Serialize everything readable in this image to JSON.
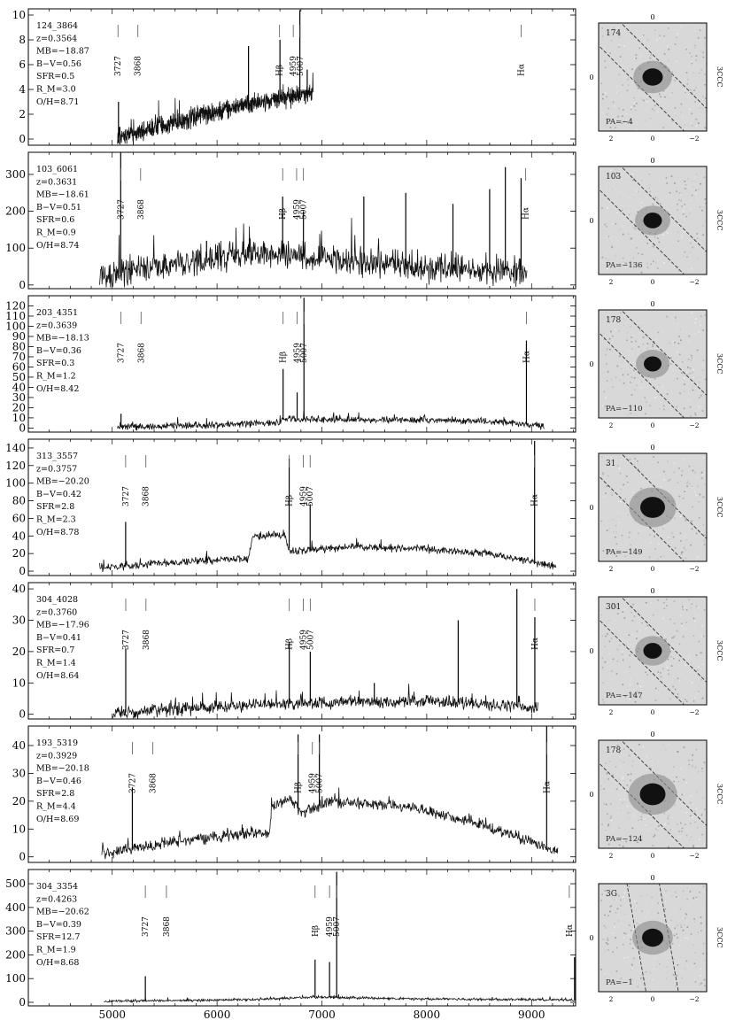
{
  "chart_data": {
    "type": "line",
    "x_axis": {
      "range": [
        4200,
        9420
      ],
      "ticks": [
        5000,
        6000,
        7000,
        8000,
        9000
      ],
      "tick_labels": [
        "5000",
        "6000",
        "7000",
        "8000",
        "9000"
      ]
    },
    "panels": [
      {
        "id": "124_3864",
        "info": [
          "124_3864",
          "z=0.3564",
          "MB=−18.87",
          "B−V=0.56",
          "SFR=0.5",
          "R_M=3.0",
          "O/H=8.71"
        ],
        "ylim": [
          -0.5,
          10.5
        ],
        "yticks": [
          0,
          2,
          4,
          6,
          8,
          10
        ],
        "lines": [
          {
            "label": "3727",
            "x": 5055
          },
          {
            "label": "3868",
            "x": 5245
          },
          {
            "label": "Hβ",
            "x": 6596
          },
          {
            "label": "4959",
            "x": 6727
          },
          {
            "label": "5007",
            "x": 6792
          },
          {
            "label": "Hα",
            "x": 8900
          }
        ],
        "spectrum": {
          "x_range": [
            5050,
            6920
          ],
          "continuum": [
            [
              5050,
              0.1
            ],
            [
              5400,
              0.9
            ],
            [
              5800,
              1.8
            ],
            [
              6200,
              2.6
            ],
            [
              6600,
              3.2
            ],
            [
              6920,
              3.8
            ]
          ],
          "noise": 0.7,
          "spikes": [
            [
              5060,
              3.0
            ],
            [
              6300,
              7.5
            ],
            [
              6600,
              8.0
            ],
            [
              6790,
              10.4
            ],
            [
              6860,
              5.6
            ]
          ]
        },
        "thumb": {
          "id_label": "174",
          "pa_label": "PA=−4",
          "side_label": "3CCC",
          "scale_ticks": [
            "2",
            "0",
            "−2"
          ],
          "line_angle": 45,
          "blob_size": 0.55
        }
      },
      {
        "id": "103_6061",
        "info": [
          "103_6061",
          "z=0.3631",
          "MB=−18.61",
          "B−V=0.51",
          "SFR=0.6",
          "R_M=0.9",
          "O/H=8.74"
        ],
        "ylim": [
          -10,
          360
        ],
        "yticks": [
          0,
          100,
          200,
          300
        ],
        "lines": [
          {
            "label": "3727",
            "x": 5081
          },
          {
            "label": "3868",
            "x": 5271
          },
          {
            "label": "Hβ",
            "x": 6626
          },
          {
            "label": "4959",
            "x": 6759
          },
          {
            "label": "5007",
            "x": 6824
          },
          {
            "label": "Hα",
            "x": 8944
          }
        ],
        "spectrum": {
          "x_range": [
            4880,
            8960
          ],
          "continuum": [
            [
              4880,
              15
            ],
            [
              5300,
              45
            ],
            [
              5900,
              75
            ],
            [
              6500,
              90
            ],
            [
              7000,
              70
            ],
            [
              7600,
              55
            ],
            [
              8300,
              45
            ],
            [
              8960,
              40
            ]
          ],
          "noise": 35,
          "spikes": [
            [
              5081,
              360
            ],
            [
              5900,
              120
            ],
            [
              6626,
              240
            ],
            [
              6824,
              200
            ],
            [
              7400,
              240
            ],
            [
              7800,
              250
            ],
            [
              8250,
              220
            ],
            [
              8600,
              260
            ],
            [
              8750,
              320
            ],
            [
              8900,
              290
            ]
          ]
        },
        "thumb": {
          "id_label": "103",
          "pa_label": "PA=−136",
          "side_label": "3CCC",
          "scale_ticks": [
            "2",
            "0",
            "−2"
          ],
          "line_angle": 45,
          "blob_size": 0.45
        }
      },
      {
        "id": "203_4351",
        "info": [
          "203_4351",
          "z=0.3639",
          "MB=−18.13",
          "B−V=0.36",
          "SFR=0.3",
          "R_M=1.2",
          "O/H=8.42"
        ],
        "ylim": [
          -4,
          130
        ],
        "yticks": [
          0,
          10,
          20,
          30,
          40,
          50,
          60,
          70,
          80,
          90,
          100,
          110,
          120
        ],
        "lines": [
          {
            "label": "3727",
            "x": 5084
          },
          {
            "label": "3868",
            "x": 5275
          },
          {
            "label": "Hβ",
            "x": 6630
          },
          {
            "label": "4959",
            "x": 6764
          },
          {
            "label": "5007",
            "x": 6829
          },
          {
            "label": "Hα",
            "x": 8951
          }
        ],
        "spectrum": {
          "x_range": [
            5050,
            9120
          ],
          "continuum": [
            [
              5050,
              1
            ],
            [
              6000,
              3
            ],
            [
              6600,
              5
            ],
            [
              6620,
              9
            ],
            [
              7500,
              8
            ],
            [
              8500,
              7
            ],
            [
              9120,
              2
            ]
          ],
          "noise": 3,
          "spikes": [
            [
              5084,
              14
            ],
            [
              6630,
              58
            ],
            [
              6764,
              35
            ],
            [
              6829,
              128
            ],
            [
              8951,
              86
            ]
          ]
        },
        "thumb": {
          "id_label": "178",
          "pa_label": "PA=−110",
          "side_label": "3CCC",
          "scale_ticks": [
            "2",
            "0",
            "−2"
          ],
          "line_angle": 45,
          "blob_size": 0.4
        }
      },
      {
        "id": "313_3557",
        "info": [
          "313_3557",
          "z=0.3757",
          "MB=−20.20",
          "B−V=0.42",
          "SFR=2.8",
          "R_M=2.3",
          "O/H=8.78"
        ],
        "ylim": [
          -5,
          150
        ],
        "yticks": [
          0,
          20,
          40,
          60,
          80,
          100,
          120,
          140
        ],
        "lines": [
          {
            "label": "3727",
            "x": 5128
          },
          {
            "label": "3868",
            "x": 5321
          },
          {
            "label": "Hβ",
            "x": 6688
          },
          {
            "label": "4959",
            "x": 6822
          },
          {
            "label": "5007",
            "x": 6888
          },
          {
            "label": "Hα",
            "x": 9029
          }
        ],
        "spectrum": {
          "x_range": [
            4880,
            9240
          ],
          "continuum": [
            [
              4880,
              4
            ],
            [
              5600,
              10
            ],
            [
              6300,
              15
            ],
            [
              6340,
              40
            ],
            [
              6640,
              42
            ],
            [
              6700,
              22
            ],
            [
              7300,
              28
            ],
            [
              8000,
              25
            ],
            [
              8600,
              20
            ],
            [
              9240,
              5
            ]
          ],
          "noise": 4,
          "spikes": [
            [
              5128,
              56
            ],
            [
              5900,
              20
            ],
            [
              6688,
              128
            ],
            [
              6888,
              76
            ],
            [
              9029,
              148
            ]
          ]
        },
        "thumb": {
          "id_label": "31",
          "pa_label": "PA=−149",
          "side_label": "3CCC",
          "scale_ticks": [
            "2",
            "0",
            "−2"
          ],
          "line_angle": 45,
          "blob_size": 0.8
        }
      },
      {
        "id": "304_4028",
        "info": [
          "304_4028",
          "z=0.3760",
          "MB=−17.96",
          "B−V=0.41",
          "SFR=0.7",
          "R_M=1.4",
          "O/H=8.64"
        ],
        "ylim": [
          -1.5,
          42
        ],
        "yticks": [
          0,
          10,
          20,
          30,
          40
        ],
        "lines": [
          {
            "label": "3727",
            "x": 5129
          },
          {
            "label": "3868",
            "x": 5322
          },
          {
            "label": "Hβ",
            "x": 6689
          },
          {
            "label": "4959",
            "x": 6823
          },
          {
            "label": "5007",
            "x": 6889
          },
          {
            "label": "Hα",
            "x": 9031
          }
        ],
        "spectrum": {
          "x_range": [
            5000,
            9060
          ],
          "continuum": [
            [
              5000,
              0.3
            ],
            [
              5600,
              1.5
            ],
            [
              6400,
              3
            ],
            [
              7200,
              4
            ],
            [
              8200,
              4
            ],
            [
              9060,
              2
            ]
          ],
          "noise": 1.8,
          "spikes": [
            [
              5129,
              21
            ],
            [
              6689,
              23
            ],
            [
              6889,
              20
            ],
            [
              7500,
              10
            ],
            [
              8300,
              30
            ],
            [
              8860,
              40
            ],
            [
              9031,
              31
            ]
          ]
        },
        "thumb": {
          "id_label": "301",
          "pa_label": "PA=−147",
          "side_label": "3CCC",
          "scale_ticks": [
            "2",
            "0",
            "−2"
          ],
          "line_angle": 45,
          "blob_size": 0.45
        }
      },
      {
        "id": "193_5319",
        "info": [
          "193_5319",
          "z=0.3929",
          "MB=−20.18",
          "B−V=0.46",
          "SFR=2.8",
          "R_M=4.4",
          "O/H=8.69"
        ],
        "ylim": [
          -2,
          47
        ],
        "yticks": [
          0,
          10,
          20,
          30,
          40
        ],
        "lines": [
          {
            "label": "3727",
            "x": 5192
          },
          {
            "label": "3868",
            "x": 5388
          },
          {
            "label": "Hβ",
            "x": 6773
          },
          {
            "label": "4959",
            "x": 6909
          },
          {
            "label": "5007",
            "x": 6976
          },
          {
            "label": "Hα",
            "x": 9144
          }
        ],
        "spectrum": {
          "x_range": [
            4900,
            9250
          ],
          "continuum": [
            [
              4900,
              1
            ],
            [
              5500,
              5
            ],
            [
              6200,
              8
            ],
            [
              6500,
              9
            ],
            [
              6520,
              18
            ],
            [
              6700,
              21
            ],
            [
              6800,
              16
            ],
            [
              7100,
              20
            ],
            [
              7800,
              18
            ],
            [
              8500,
              12
            ],
            [
              9250,
              2
            ]
          ],
          "noise": 1.8,
          "spikes": [
            [
              5192,
              25
            ],
            [
              6773,
              44
            ],
            [
              6976,
              44
            ],
            [
              9144,
              47
            ]
          ]
        },
        "thumb": {
          "id_label": "178",
          "pa_label": "PA=−124",
          "side_label": "3CCC",
          "scale_ticks": [
            "2",
            "0",
            "−2"
          ],
          "line_angle": 45,
          "blob_size": 0.85
        }
      },
      {
        "id": "304_3354",
        "info": [
          "304_3354",
          "z=0.4263",
          "MB=−20.62",
          "B−V=0.39",
          "SFR=12.7",
          "R_M=1.9",
          "O/H=8.68"
        ],
        "ylim": [
          -15,
          560
        ],
        "yticks": [
          0,
          100,
          200,
          300,
          400,
          500
        ],
        "lines": [
          {
            "label": "3727",
            "x": 5316
          },
          {
            "label": "3868",
            "x": 5517
          },
          {
            "label": "Hβ",
            "x": 6935
          },
          {
            "label": "4959",
            "x": 7073
          },
          {
            "label": "5007",
            "x": 7141
          },
          {
            "label": "Hα",
            "x": 9360
          }
        ],
        "spectrum": {
          "x_range": [
            4920,
            9420
          ],
          "continuum": [
            [
              4920,
              4
            ],
            [
              5600,
              8
            ],
            [
              6400,
              12
            ],
            [
              6800,
              20
            ],
            [
              7000,
              22
            ],
            [
              8000,
              14
            ],
            [
              9420,
              10
            ]
          ],
          "noise": 5,
          "spikes": [
            [
              5316,
              110
            ],
            [
              6935,
              180
            ],
            [
              7073,
              170
            ],
            [
              7141,
              550
            ],
            [
              9410,
              190
            ]
          ]
        },
        "thumb": {
          "id_label": "3G",
          "pa_label": "PA=−1",
          "side_label": "3CCC",
          "scale_ticks": [
            "2",
            "0",
            "−2"
          ],
          "line_angle": 80,
          "blob_size": 0.6
        }
      }
    ]
  }
}
